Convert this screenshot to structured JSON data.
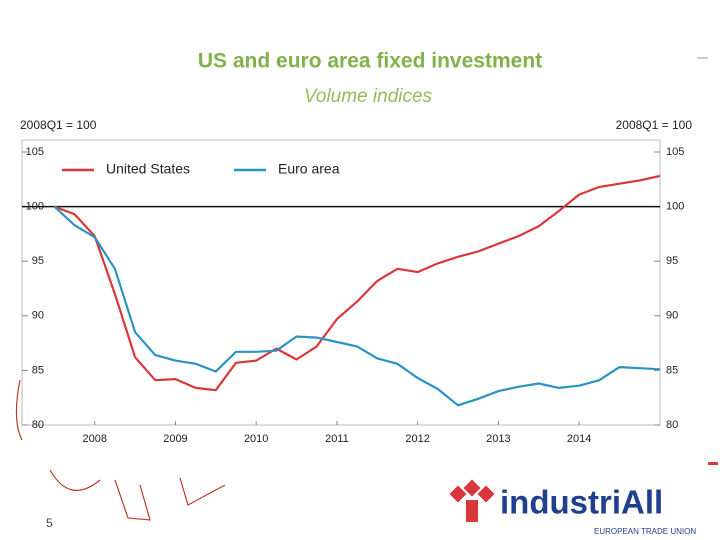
{
  "chart_data": {
    "type": "line",
    "title": "US and euro area fixed investment",
    "subtitle": "Volume indices",
    "y_label": "2008Q1 = 100",
    "y2_label": "2008Q1 = 100",
    "x": [
      2008,
      2008.25,
      2008.5,
      2008.75,
      2009,
      2009.25,
      2009.5,
      2009.75,
      2010,
      2010.25,
      2010.5,
      2010.75,
      2011,
      2011.25,
      2011.5,
      2011.75,
      2012,
      2012.25,
      2012.5,
      2012.75,
      2013,
      2013.25,
      2013.5,
      2013.75,
      2014,
      2014.25,
      2014.5,
      2014.75,
      2015,
      2015.25,
      2015.5
    ],
    "series": [
      {
        "name": "United States",
        "color": "#d9383a",
        "values": [
          100,
          99.3,
          97.3,
          92,
          86.2,
          84.1,
          84.2,
          83.4,
          83.2,
          85.7,
          85.9,
          87,
          86,
          87.2,
          89.7,
          91.3,
          93.2,
          94.3,
          94,
          94.8,
          95.4,
          95.9,
          96.6,
          97.3,
          98.2,
          99.6,
          101.1,
          101.8,
          102.1,
          102.4,
          102.8
        ]
      },
      {
        "name": "Euro area",
        "color": "#2a92c4",
        "values": [
          100,
          98.3,
          97.2,
          94.3,
          88.5,
          86.4,
          85.9,
          85.6,
          84.9,
          86.7,
          86.7,
          86.8,
          88.1,
          88,
          87.6,
          87.2,
          86.1,
          85.6,
          84.3,
          83.3,
          81.8,
          82.4,
          83.1,
          83.5,
          83.8,
          83.4,
          83.6,
          84.1,
          85.3,
          85.2,
          85.1
        ]
      }
    ],
    "reference_line": 100,
    "xlim": [
      2007.5,
      2015.75
    ],
    "xticks": [
      {
        "value": 2008.5,
        "label": "2008"
      },
      {
        "value": 2009.5,
        "label": "2009"
      },
      {
        "value": 2010.5,
        "label": "2010"
      },
      {
        "value": 2011.5,
        "label": "2011"
      },
      {
        "value": 2012.5,
        "label": "2012"
      },
      {
        "value": 2013.5,
        "label": "2013"
      },
      {
        "value": 2014.5,
        "label": "2014"
      }
    ],
    "ylim": [
      80,
      105
    ],
    "yticks": [
      80,
      85,
      90,
      95,
      100,
      105
    ],
    "y2lim": [
      80,
      105
    ],
    "y2ticks": [
      80,
      85,
      90,
      95,
      100,
      105
    ],
    "grid": false,
    "legend": "top-left"
  },
  "slide": {
    "page_number": "5",
    "logo": {
      "name": "industriAll",
      "tagline": "EUROPEAN TRADE UNION"
    }
  }
}
